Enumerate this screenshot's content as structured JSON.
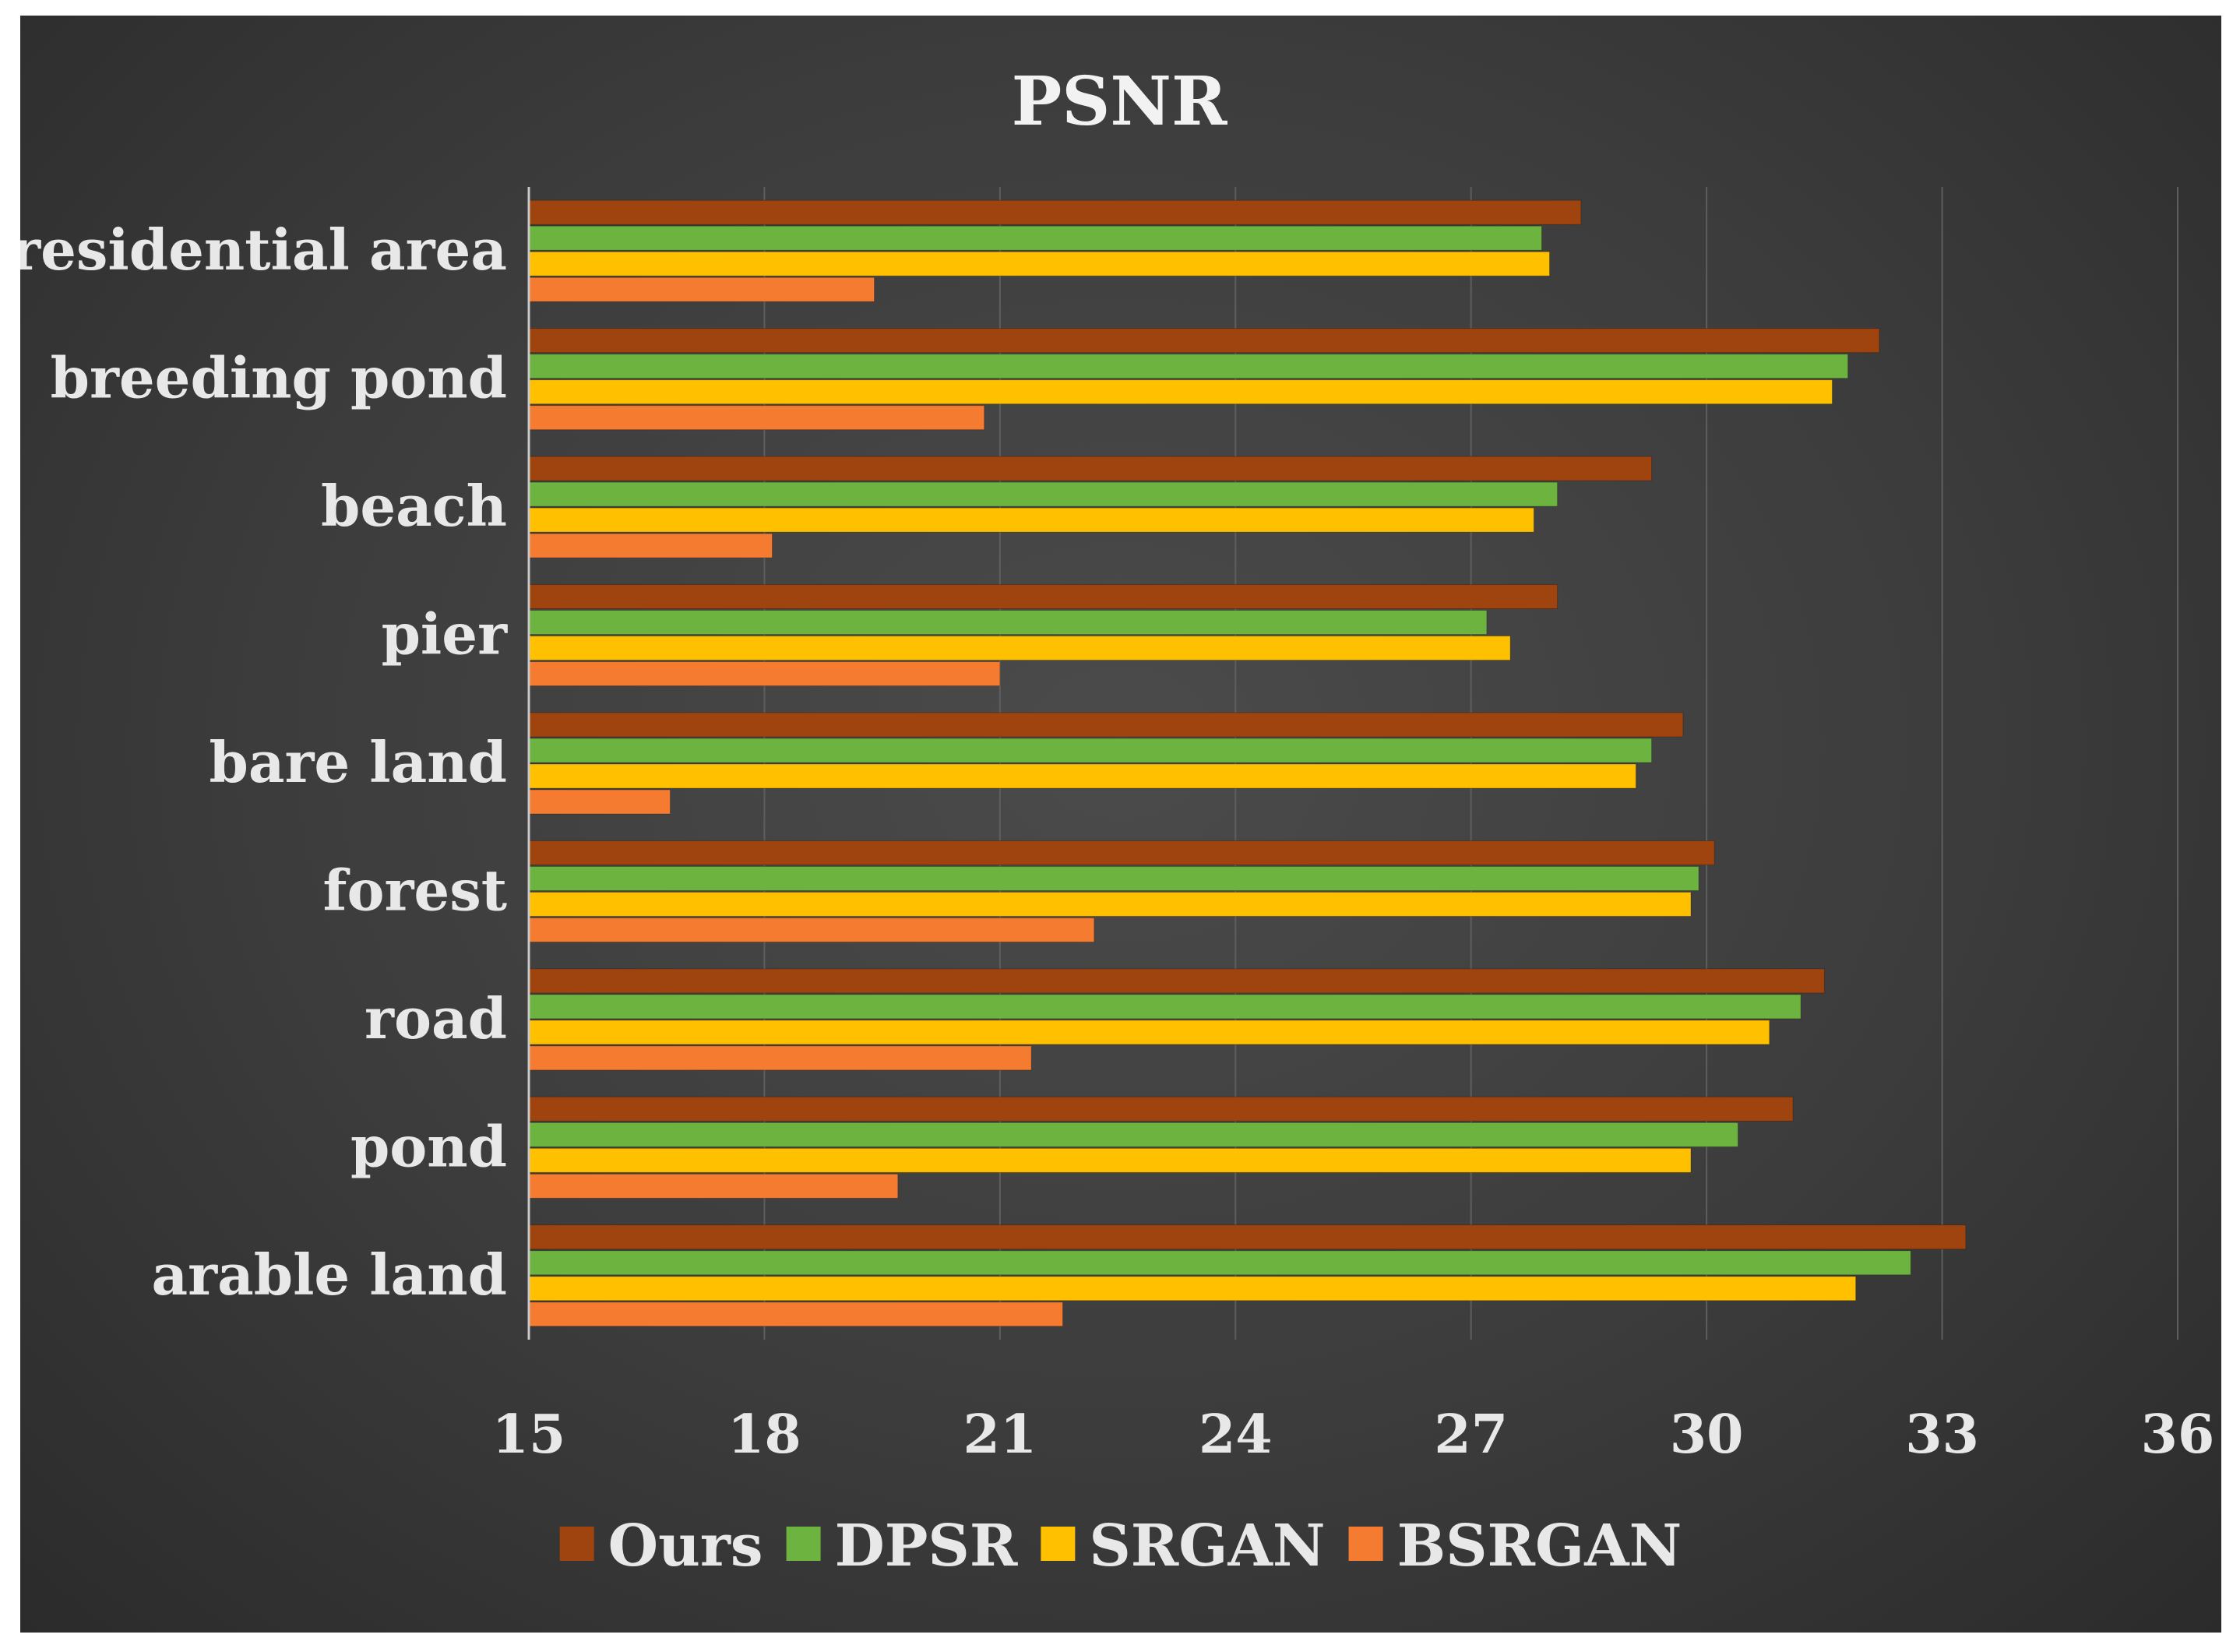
{
  "chart_data": {
    "type": "bar",
    "orientation": "horizontal",
    "title": "PSNR",
    "xlabel": "",
    "ylabel": "",
    "xlim": [
      15,
      36
    ],
    "x_ticks": [
      "15",
      "18",
      "21",
      "24",
      "27",
      "30",
      "33",
      "36"
    ],
    "grid": true,
    "legend_position": "bottom",
    "categories": [
      "residential area",
      "breeding pond",
      "beach",
      "pier",
      "bare land",
      "forest",
      "road",
      "pond",
      "arable land"
    ],
    "series": [
      {
        "name": "Ours",
        "color": "#a0440f",
        "values": [
          28.4,
          32.2,
          29.3,
          28.1,
          29.7,
          30.1,
          31.5,
          31.1,
          33.3
        ]
      },
      {
        "name": "DPSR",
        "color": "#6db33f",
        "values": [
          27.9,
          31.8,
          28.1,
          27.2,
          29.3,
          29.9,
          31.2,
          30.4,
          32.6
        ]
      },
      {
        "name": "SRGAN",
        "color": "#ffc000",
        "values": [
          28.0,
          31.6,
          27.8,
          27.5,
          29.1,
          29.8,
          30.8,
          29.8,
          31.9
        ]
      },
      {
        "name": "BSRGAN",
        "color": "#f47b30",
        "values": [
          19.4,
          20.8,
          18.1,
          21.0,
          16.8,
          22.2,
          21.4,
          19.7,
          21.8
        ]
      }
    ]
  }
}
